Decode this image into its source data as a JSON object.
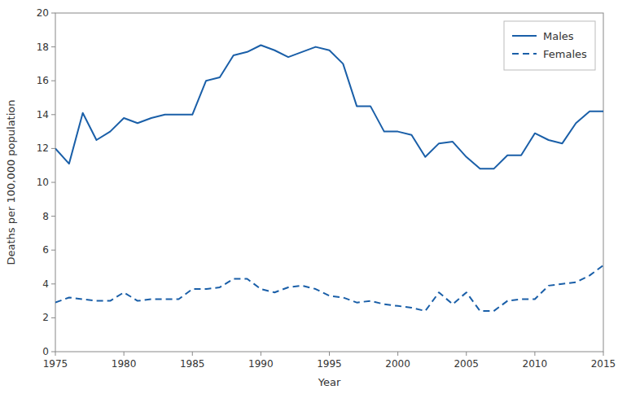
{
  "chart_data": {
    "type": "line",
    "xlabel": "Year",
    "ylabel": "Deaths per 100,000 population",
    "x": [
      1975,
      1976,
      1977,
      1978,
      1979,
      1980,
      1981,
      1982,
      1983,
      1984,
      1985,
      1986,
      1987,
      1988,
      1989,
      1990,
      1991,
      1992,
      1993,
      1994,
      1995,
      1996,
      1997,
      1998,
      1999,
      2000,
      2001,
      2002,
      2003,
      2004,
      2005,
      2006,
      2007,
      2008,
      2009,
      2010,
      2011,
      2012,
      2013,
      2014,
      2015
    ],
    "series": [
      {
        "name": "Males",
        "color": "#1a5fa8",
        "line_style": "solid",
        "values": [
          12.0,
          11.1,
          14.1,
          12.5,
          13.0,
          13.8,
          13.5,
          13.8,
          14.0,
          14.0,
          14.0,
          16.0,
          16.2,
          17.5,
          17.7,
          18.1,
          17.8,
          17.4,
          17.7,
          18.0,
          17.8,
          17.0,
          14.5,
          14.5,
          13.0,
          13.0,
          12.8,
          11.5,
          12.3,
          12.4,
          11.5,
          10.8,
          10.8,
          11.6,
          11.6,
          12.9,
          12.5,
          12.3,
          13.5,
          14.2,
          14.2
        ]
      },
      {
        "name": "Females",
        "color": "#1a5fa8",
        "line_style": "dashed",
        "values": [
          2.9,
          3.2,
          3.1,
          3.0,
          3.0,
          3.5,
          3.0,
          3.1,
          3.1,
          3.1,
          3.7,
          3.7,
          3.8,
          4.3,
          4.3,
          3.7,
          3.5,
          3.8,
          3.9,
          3.7,
          3.3,
          3.2,
          2.9,
          3.0,
          2.8,
          2.7,
          2.6,
          2.4,
          3.5,
          2.8,
          3.5,
          2.4,
          2.4,
          3.0,
          3.1,
          3.1,
          3.9,
          4.0,
          4.1,
          4.5,
          5.1
        ]
      }
    ],
    "xlim": [
      1975,
      2015
    ],
    "ylim": [
      0,
      20
    ],
    "xticks": [
      1975,
      1980,
      1985,
      1990,
      1995,
      2000,
      2005,
      2010,
      2015
    ],
    "yticks": [
      0,
      2,
      4,
      6,
      8,
      10,
      12,
      14,
      16,
      18,
      20
    ],
    "grid": false,
    "legend": "upper right"
  }
}
